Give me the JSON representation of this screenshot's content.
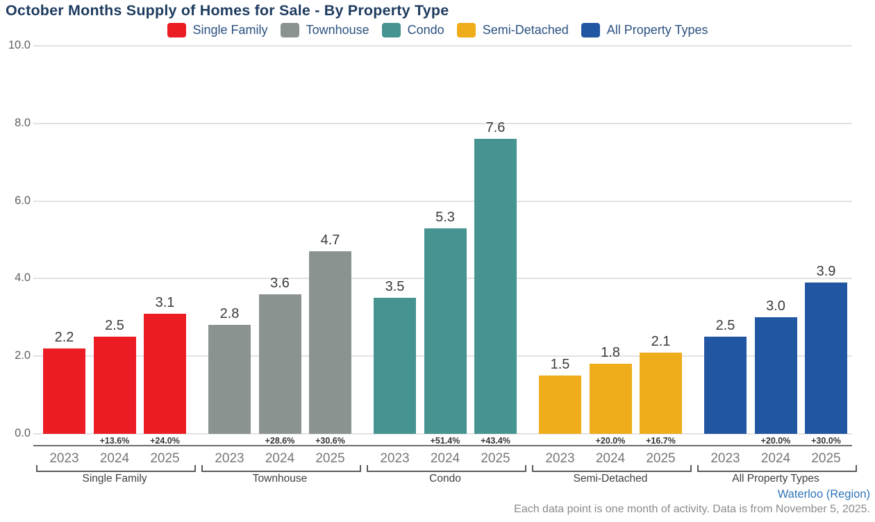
{
  "title": "October Months Supply of Homes for Sale - By Property Type",
  "chart_data": {
    "type": "bar",
    "title": "October Months Supply of Homes for Sale - By Property Type",
    "xlabel": "",
    "ylabel": "",
    "ylim": [
      0,
      10
    ],
    "ytick_labels": [
      "0.0",
      "2.0",
      "4.0",
      "6.0",
      "8.0",
      "10.0"
    ],
    "categories": [
      "2023",
      "2024",
      "2025"
    ],
    "grid": true,
    "legend_position": "top",
    "groups": [
      {
        "label": "Single Family",
        "color": "#EC1C24",
        "values": [
          2.2,
          2.5,
          3.1
        ],
        "pct_change": [
          "",
          "+13.6%",
          "+24.0%"
        ]
      },
      {
        "label": "Townhouse",
        "color": "#8B9391",
        "values": [
          2.8,
          3.6,
          4.7
        ],
        "pct_change": [
          "",
          "+28.6%",
          "+30.6%"
        ]
      },
      {
        "label": "Condo",
        "color": "#459492",
        "values": [
          3.5,
          5.3,
          7.6
        ],
        "pct_change": [
          "",
          "+51.4%",
          "+43.4%"
        ]
      },
      {
        "label": "Semi-Detached",
        "color": "#EFAC1B",
        "values": [
          1.5,
          1.8,
          2.1
        ],
        "pct_change": [
          "",
          "+20.0%",
          "+16.7%"
        ]
      },
      {
        "label": "All Property Types",
        "color": "#2156A3",
        "values": [
          2.5,
          3.0,
          3.9
        ],
        "pct_change": [
          "",
          "+20.0%",
          "+30.0%"
        ]
      }
    ]
  },
  "footer": {
    "region_link": "Waterloo (Region)",
    "note": "Each data point is one month of activity. Data is from November 5, 2025."
  }
}
